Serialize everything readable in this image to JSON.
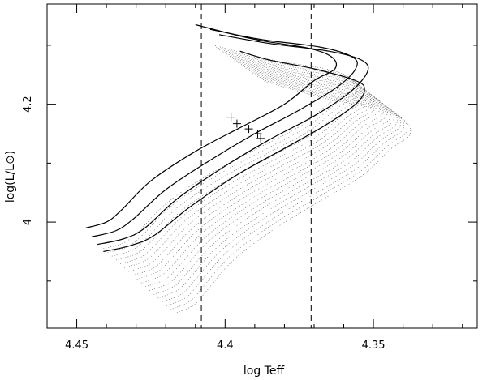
{
  "chart_data": {
    "type": "line",
    "title": "",
    "xlabel": "log Teff",
    "ylabel": "log(L/L⊙)",
    "x_reversed": true,
    "xlim": [
      4.46,
      4.315
    ],
    "ylim": [
      3.82,
      4.37
    ],
    "xticks_major": [
      4.45,
      4.4,
      4.35
    ],
    "xtick_labels": [
      "4.45",
      "4.4",
      "4.35"
    ],
    "xticks_minor": [
      4.44,
      4.43,
      4.42,
      4.41,
      4.39,
      4.38,
      4.37,
      4.36,
      4.34,
      4.33,
      4.32
    ],
    "yticks_major": [
      4.0,
      4.2
    ],
    "ytick_labels": [
      "4",
      "4.2"
    ],
    "yticks_minor": [
      3.9,
      4.1,
      4.3
    ],
    "grid": false,
    "vertical_lines": [
      4.408,
      4.371
    ],
    "series": [
      {
        "style": "solid",
        "points": [
          [
            4.447,
            3.99
          ],
          [
            4.44,
            4.0
          ],
          [
            4.435,
            4.02
          ],
          [
            4.425,
            4.07
          ],
          [
            4.41,
            4.12
          ],
          [
            4.395,
            4.16
          ],
          [
            4.38,
            4.2
          ],
          [
            4.37,
            4.24
          ],
          [
            4.363,
            4.26
          ],
          [
            4.364,
            4.28
          ],
          [
            4.372,
            4.295
          ],
          [
            4.39,
            4.31
          ],
          [
            4.41,
            4.335
          ]
        ]
      },
      {
        "style": "solid",
        "points": [
          [
            4.445,
            3.975
          ],
          [
            4.437,
            3.985
          ],
          [
            4.431,
            4.005
          ],
          [
            4.42,
            4.055
          ],
          [
            4.405,
            4.105
          ],
          [
            4.39,
            4.15
          ],
          [
            4.375,
            4.19
          ],
          [
            4.362,
            4.23
          ],
          [
            4.356,
            4.26
          ],
          [
            4.357,
            4.28
          ],
          [
            4.368,
            4.297
          ],
          [
            4.388,
            4.31
          ],
          [
            4.405,
            4.327
          ]
        ]
      },
      {
        "style": "solid",
        "points": [
          [
            4.443,
            3.962
          ],
          [
            4.434,
            3.972
          ],
          [
            4.427,
            3.99
          ],
          [
            4.416,
            4.04
          ],
          [
            4.4,
            4.095
          ],
          [
            4.385,
            4.14
          ],
          [
            4.37,
            4.18
          ],
          [
            4.358,
            4.22
          ],
          [
            4.352,
            4.255
          ],
          [
            4.354,
            4.275
          ],
          [
            4.365,
            4.29
          ],
          [
            4.385,
            4.303
          ],
          [
            4.402,
            4.318
          ]
        ]
      },
      {
        "style": "solid",
        "points": [
          [
            4.441,
            3.95
          ],
          [
            4.432,
            3.96
          ],
          [
            4.424,
            3.977
          ],
          [
            4.412,
            4.025
          ],
          [
            4.396,
            4.08
          ],
          [
            4.38,
            4.125
          ],
          [
            4.366,
            4.165
          ],
          [
            4.356,
            4.2
          ],
          [
            4.353,
            4.225
          ],
          [
            4.356,
            4.24
          ],
          [
            4.37,
            4.26
          ],
          [
            4.385,
            4.275
          ],
          [
            4.395,
            4.29
          ]
        ]
      }
    ],
    "markers": [
      [
        4.398,
        4.178
      ],
      [
        4.396,
        4.167
      ],
      [
        4.392,
        4.158
      ],
      [
        4.389,
        4.15
      ],
      [
        4.388,
        4.142
      ]
    ]
  }
}
